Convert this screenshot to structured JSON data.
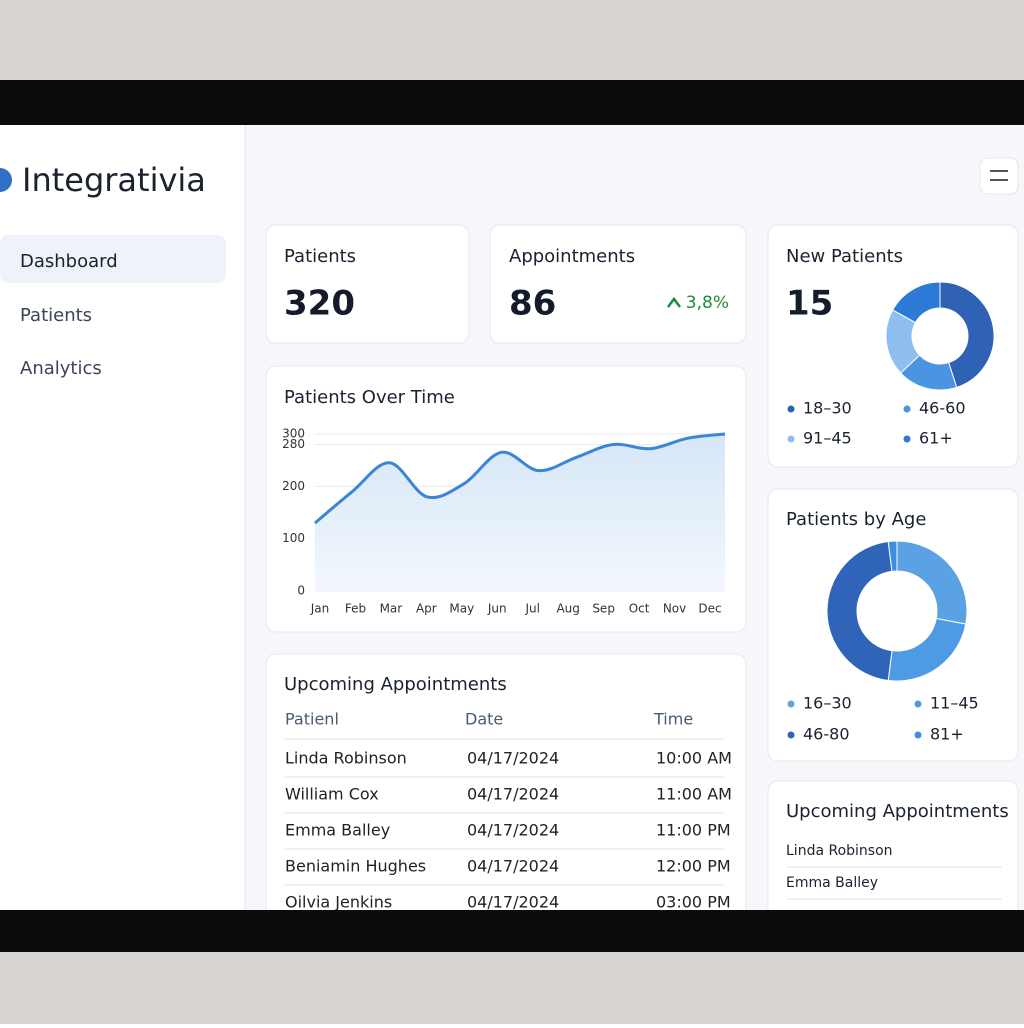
{
  "brand": "Integrativia",
  "nav": [
    "Dashboard",
    "Patients",
    "Analytics"
  ],
  "stats": [
    {
      "title": "Patients",
      "value": 320
    },
    {
      "title": "Appointments",
      "value": 86,
      "change": "3,8%"
    }
  ],
  "new_patients": {
    "title": "New Patients",
    "value": 15,
    "chart_data": {
      "type": "pie",
      "categories": [
        "18–30",
        "46-60",
        "91–45",
        "61+"
      ],
      "values": [
        45,
        18,
        20,
        17
      ],
      "colors": [
        "#2f62b5",
        "#4a94e2",
        "#8fbfee",
        "#2a7ad6"
      ]
    }
  },
  "line_chart": {
    "chart_data": {
      "type": "line",
      "title": "Patients Over Time",
      "categories": [
        "Jan",
        "Feb",
        "Mar",
        "Apr",
        "May",
        "Jun",
        "Jul",
        "Aug",
        "Sep",
        "Oct",
        "Nov",
        "Dec"
      ],
      "values": [
        130,
        190,
        245,
        180,
        205,
        265,
        230,
        255,
        280,
        272,
        292,
        300
      ],
      "color": "#3a86d4",
      "ylim": [
        0,
        300
      ],
      "yticks": [
        0,
        100,
        200,
        280,
        300
      ],
      "grid": true
    }
  },
  "table": {
    "title": "Upcoming Appointments",
    "columns": [
      "Patienl",
      "Date",
      "Time"
    ],
    "rows": [
      [
        "Linda Robinson",
        "04/17/2024",
        "10:00 AM"
      ],
      [
        "William Cox",
        "04/17/2024",
        "11:00 AM"
      ],
      [
        "Emma Balley",
        "04/17/2024",
        "11:00 PM"
      ],
      [
        "Beniamin Hughes",
        "04/17/2024",
        "12:00 PM"
      ],
      [
        "Oilvia Jenkins",
        "04/17/2024",
        "03:00 PM"
      ]
    ]
  },
  "age": {
    "title": "Patients by Age",
    "chart_data": {
      "type": "pie",
      "categories": [
        "16–30",
        "11–45",
        "46-80",
        "81+"
      ],
      "values": [
        28,
        24,
        46,
        2
      ],
      "colors": [
        "#5aa2e4",
        "#4f9be3",
        "#2f64b8",
        "#3d8ee0"
      ]
    }
  },
  "side_list": {
    "title": "Upcoming Appointments",
    "items": [
      "Linda Robinson",
      "Emma Balley"
    ]
  }
}
